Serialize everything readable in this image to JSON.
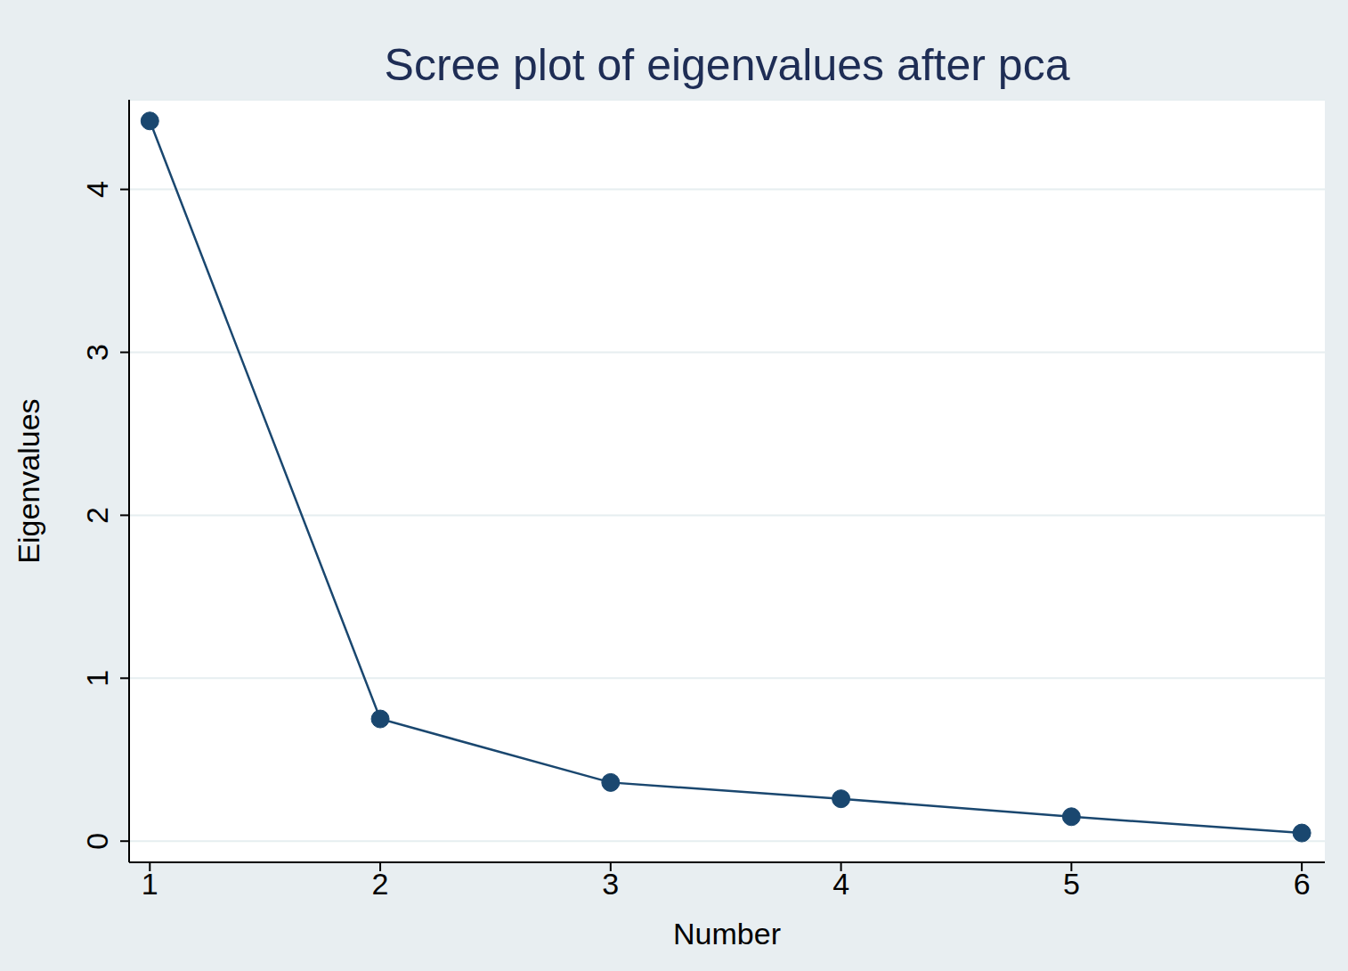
{
  "chart_data": {
    "type": "line",
    "title": "Scree plot of eigenvalues after pca",
    "x_label": "Number",
    "y_label": "Eigenvalues",
    "x": [
      1,
      2,
      3,
      4,
      5,
      6
    ],
    "values": [
      4.42,
      0.75,
      0.36,
      0.26,
      0.15,
      0.05
    ],
    "color": "#1a476f",
    "marker": "circle",
    "line_style": "solid",
    "xlim": [
      0.91,
      6.1
    ],
    "xticks": [
      1,
      2,
      3,
      4,
      5,
      6
    ],
    "ylim": [
      -0.13,
      4.55
    ],
    "yticks": [
      0,
      1,
      2,
      3,
      4
    ],
    "grid": true
  }
}
